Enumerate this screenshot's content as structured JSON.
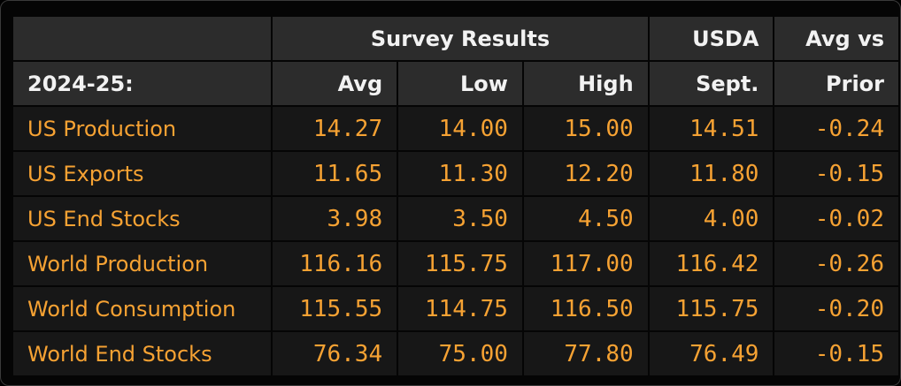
{
  "table": {
    "header": {
      "group": "Survey Results",
      "usda": "USDA",
      "avg_vs": "Avg vs"
    },
    "columns": [
      "2024-25:",
      "Avg",
      "Low",
      "High",
      "Sept.",
      "Prior"
    ],
    "rows": [
      [
        "US Production",
        "14.27",
        "14.00",
        "15.00",
        "14.51",
        "-0.24"
      ],
      [
        "US Exports",
        "11.65",
        "11.30",
        "12.20",
        "11.80",
        "-0.15"
      ],
      [
        "US End Stocks",
        "3.98",
        "3.50",
        "4.50",
        "4.00",
        "-0.02"
      ],
      [
        "World Production",
        "116.16",
        "115.75",
        "117.00",
        "116.42",
        "-0.26"
      ],
      [
        "World Consumption",
        "115.55",
        "114.75",
        "116.50",
        "115.75",
        "-0.20"
      ],
      [
        "World End Stocks",
        "76.34",
        "75.00",
        "77.80",
        "76.49",
        "-0.15"
      ]
    ]
  }
}
